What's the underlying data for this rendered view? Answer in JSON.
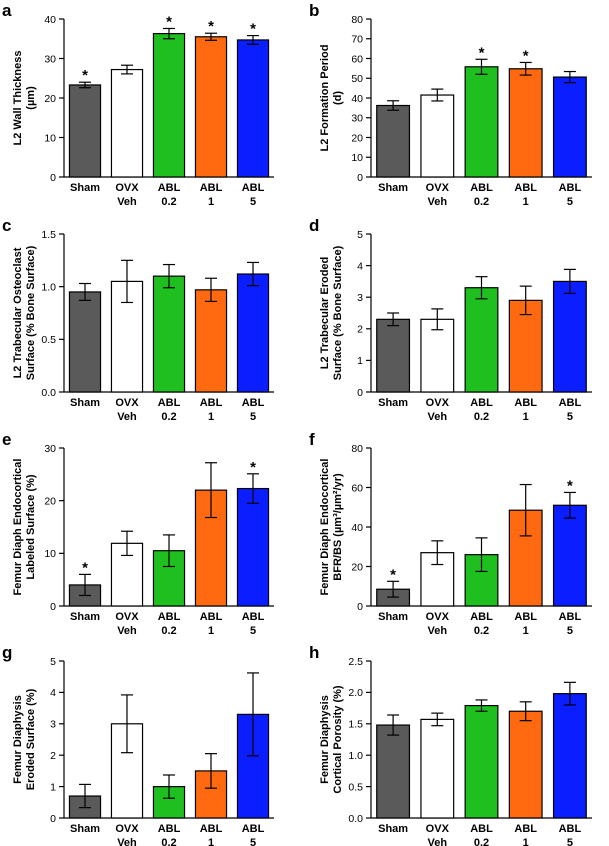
{
  "chart_data": [
    {
      "panel": "a",
      "type": "bar",
      "categories": [
        "Sham",
        "OVX Veh",
        "ABL 0.2",
        "ABL 1",
        "ABL 5"
      ],
      "cat_line1": [
        "Sham",
        "OVX",
        "ABL",
        "ABL",
        "ABL"
      ],
      "cat_line2": [
        "",
        "Veh",
        "0.2",
        "1",
        "5"
      ],
      "ylabel_lines": [
        "L2 Wall Thickness",
        "(µm)"
      ],
      "ylim": [
        0,
        40
      ],
      "yticks": [
        0,
        10,
        20,
        30,
        40
      ],
      "ytick_labels": [
        "0",
        "10",
        "20",
        "30",
        "40"
      ],
      "values": [
        23.3,
        27.2,
        36.3,
        35.5,
        34.7
      ],
      "errors": [
        0.7,
        1.1,
        1.3,
        0.9,
        1.1
      ],
      "significance": [
        "*",
        "",
        "*",
        "*",
        "*"
      ]
    },
    {
      "panel": "b",
      "type": "bar",
      "categories": [
        "Sham",
        "OVX Veh",
        "ABL 0.2",
        "ABL 1",
        "ABL 5"
      ],
      "cat_line1": [
        "Sham",
        "OVX",
        "ABL",
        "ABL",
        "ABL"
      ],
      "cat_line2": [
        "",
        "Veh",
        "0.2",
        "1",
        "5"
      ],
      "ylabel_lines": [
        "L2 Formation Period",
        "(d)"
      ],
      "ylim": [
        0,
        80
      ],
      "yticks": [
        0,
        10,
        20,
        30,
        40,
        50,
        60,
        70,
        80
      ],
      "ytick_labels": [
        "0",
        "10",
        "20",
        "30",
        "40",
        "50",
        "60",
        "70",
        "80"
      ],
      "values": [
        36.2,
        41.5,
        55.8,
        54.8,
        50.6
      ],
      "errors": [
        2.4,
        3.0,
        3.8,
        3.2,
        2.8
      ],
      "significance": [
        "",
        "",
        "*",
        "*",
        ""
      ]
    },
    {
      "panel": "c",
      "type": "bar",
      "categories": [
        "Sham",
        "OVX Veh",
        "ABL 0.2",
        "ABL 1",
        "ABL 5"
      ],
      "cat_line1": [
        "Sham",
        "OVX",
        "ABL",
        "ABL",
        "ABL"
      ],
      "cat_line2": [
        "",
        "Veh",
        "0.2",
        "1",
        "5"
      ],
      "ylabel_lines": [
        "L2 Trabecular Osteoclast",
        "Surface (% Bone Surface)"
      ],
      "ylim": [
        0,
        1.5
      ],
      "yticks": [
        0,
        0.5,
        1.0,
        1.5
      ],
      "ytick_labels": [
        "0.0",
        "0.5",
        "1.0",
        "1.5"
      ],
      "values": [
        0.95,
        1.05,
        1.1,
        0.97,
        1.12
      ],
      "errors": [
        0.08,
        0.2,
        0.11,
        0.11,
        0.11
      ],
      "significance": [
        "",
        "",
        "",
        "",
        ""
      ]
    },
    {
      "panel": "d",
      "type": "bar",
      "categories": [
        "Sham",
        "OVX Veh",
        "ABL 0.2",
        "ABL 1",
        "ABL 5"
      ],
      "cat_line1": [
        "Sham",
        "OVX",
        "ABL",
        "ABL",
        "ABL"
      ],
      "cat_line2": [
        "",
        "Veh",
        "0.2",
        "1",
        "5"
      ],
      "ylabel_lines": [
        "L2 Trabecular Eroded",
        "Surface (% Bone Surface)"
      ],
      "ylim": [
        0,
        5
      ],
      "yticks": [
        0,
        1,
        2,
        3,
        4,
        5
      ],
      "ytick_labels": [
        "0",
        "1",
        "2",
        "3",
        "4",
        "5"
      ],
      "values": [
        2.3,
        2.3,
        3.3,
        2.9,
        3.5
      ],
      "errors": [
        0.2,
        0.33,
        0.35,
        0.45,
        0.38
      ],
      "significance": [
        "",
        "",
        "",
        "",
        ""
      ]
    },
    {
      "panel": "e",
      "type": "bar",
      "categories": [
        "Sham",
        "OVX Veh",
        "ABL 0.2",
        "ABL 1",
        "ABL 5"
      ],
      "cat_line1": [
        "Sham",
        "OVX",
        "ABL",
        "ABL",
        "ABL"
      ],
      "cat_line2": [
        "",
        "Veh",
        "0.2",
        "1",
        "5"
      ],
      "ylabel_lines": [
        "Femur Diaph Endocortical",
        "Labeled Surface (%)"
      ],
      "ylim": [
        0,
        30
      ],
      "yticks": [
        0,
        10,
        20,
        30
      ],
      "ytick_labels": [
        "0",
        "10",
        "20",
        "30"
      ],
      "values": [
        4.0,
        11.9,
        10.5,
        22.0,
        22.3
      ],
      "errors": [
        2.0,
        2.3,
        3.0,
        5.2,
        2.8
      ],
      "significance": [
        "*",
        "",
        "",
        "",
        "*"
      ]
    },
    {
      "panel": "f",
      "type": "bar",
      "categories": [
        "Sham",
        "OVX Veh",
        "ABL 0.2",
        "ABL 1",
        "ABL 5"
      ],
      "cat_line1": [
        "Sham",
        "OVX",
        "ABL",
        "ABL",
        "ABL"
      ],
      "cat_line2": [
        "",
        "Veh",
        "0.2",
        "1",
        "5"
      ],
      "ylabel_lines": [
        "Femur Diaph Endocortical",
        "BFR/BS (µm³/µm²/yr)"
      ],
      "ylim": [
        0,
        80
      ],
      "yticks": [
        0,
        20,
        40,
        60,
        80
      ],
      "ytick_labels": [
        "0",
        "20",
        "40",
        "60",
        "80"
      ],
      "values": [
        8.5,
        27.0,
        26.0,
        48.5,
        51.0
      ],
      "errors": [
        4.0,
        6.0,
        8.5,
        13.0,
        6.5
      ],
      "significance": [
        "*",
        "",
        "",
        "",
        "*"
      ]
    },
    {
      "panel": "g",
      "type": "bar",
      "categories": [
        "Sham",
        "OVX Veh",
        "ABL 0.2",
        "ABL 1",
        "ABL 5"
      ],
      "cat_line1": [
        "Sham",
        "OVX",
        "ABL",
        "ABL",
        "ABL"
      ],
      "cat_line2": [
        "",
        "Veh",
        "0.2",
        "1",
        "5"
      ],
      "ylabel_lines": [
        "Femur Diaphysis",
        "Eroded Surface (%)"
      ],
      "ylim": [
        0,
        5
      ],
      "yticks": [
        0,
        1,
        2,
        3,
        4,
        5
      ],
      "ytick_labels": [
        "0",
        "1",
        "2",
        "3",
        "4",
        "5"
      ],
      "values": [
        0.7,
        3.0,
        1.0,
        1.5,
        3.3
      ],
      "errors": [
        0.37,
        0.92,
        0.37,
        0.55,
        1.32
      ],
      "significance": [
        "",
        "",
        "",
        "",
        ""
      ]
    },
    {
      "panel": "h",
      "type": "bar",
      "categories": [
        "Sham",
        "OVX Veh",
        "ABL 0.2",
        "ABL 1",
        "ABL 5"
      ],
      "cat_line1": [
        "Sham",
        "OVX",
        "ABL",
        "ABL",
        "ABL"
      ],
      "cat_line2": [
        "",
        "Veh",
        "0.2",
        "1",
        "5"
      ],
      "ylabel_lines": [
        "Femur Diaphysis",
        "Cortical Porosity (%)"
      ],
      "ylim": [
        0,
        2.5
      ],
      "yticks": [
        0,
        0.5,
        1.0,
        1.5,
        2.0,
        2.5
      ],
      "ytick_labels": [
        "0.0",
        "0.5",
        "1.0",
        "1.5",
        "2.0",
        "2.5"
      ],
      "values": [
        1.48,
        1.57,
        1.79,
        1.7,
        1.98
      ],
      "errors": [
        0.16,
        0.1,
        0.09,
        0.15,
        0.18
      ],
      "significance": [
        "",
        "",
        "",
        "",
        ""
      ]
    }
  ],
  "colors": {
    "bar_fills": [
      "#5a5a5a",
      "#ffffff",
      "#1fbf1f",
      "#ff6a10",
      "#0a1eff"
    ],
    "stroke": "#000000"
  }
}
